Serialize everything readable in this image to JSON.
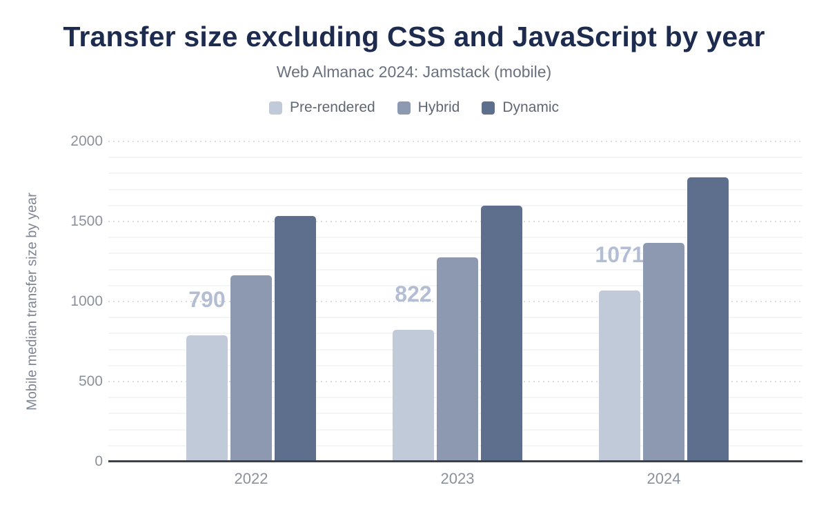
{
  "page": {
    "title": "Transfer size excluding CSS and JavaScript by year",
    "subtitle": "Web Almanac 2024: Jamstack (mobile)"
  },
  "legend": {
    "items": [
      {
        "label": "Pre-rendered",
        "color": "#c1cad9"
      },
      {
        "label": "Hybrid",
        "color": "#8d99b0"
      },
      {
        "label": "Dynamic",
        "color": "#5e6f8d"
      }
    ]
  },
  "chart_data": {
    "type": "bar",
    "title": "Transfer size excluding CSS and JavaScript by year",
    "subtitle": "Web Almanac 2024: Jamstack (mobile)",
    "categories": [
      "2022",
      "2023",
      "2024"
    ],
    "series": [
      {
        "name": "Pre-rendered",
        "color": "#c1cad9",
        "values": [
          790,
          822,
          1071
        ],
        "data_labels": [
          "790",
          "822",
          "1071"
        ]
      },
      {
        "name": "Hybrid",
        "color": "#8d99b0",
        "values": [
          1165,
          1275,
          1365
        ]
      },
      {
        "name": "Dynamic",
        "color": "#5e6f8d",
        "values": [
          1535,
          1600,
          1775
        ]
      }
    ],
    "xlabel": "",
    "ylabel": "Mobile median transfer size by year",
    "ylim": [
      0,
      2000
    ],
    "yticks": [
      0,
      500,
      1000,
      1500,
      2000
    ],
    "minor_grid_step": 100,
    "grid": "on",
    "legend_position": "top"
  },
  "colors": {
    "title": "#1c2b4e",
    "subtitle": "#6a717e",
    "legend_text": "#606774",
    "tick_text": "#8b919c",
    "axis_title_text": "#7e8593",
    "axis_line": "#3a404c",
    "grid_major": "#d9dde3",
    "grid_minor": "#f4f5f7",
    "value_label": "#b3bed4",
    "background": "#ffffff"
  }
}
